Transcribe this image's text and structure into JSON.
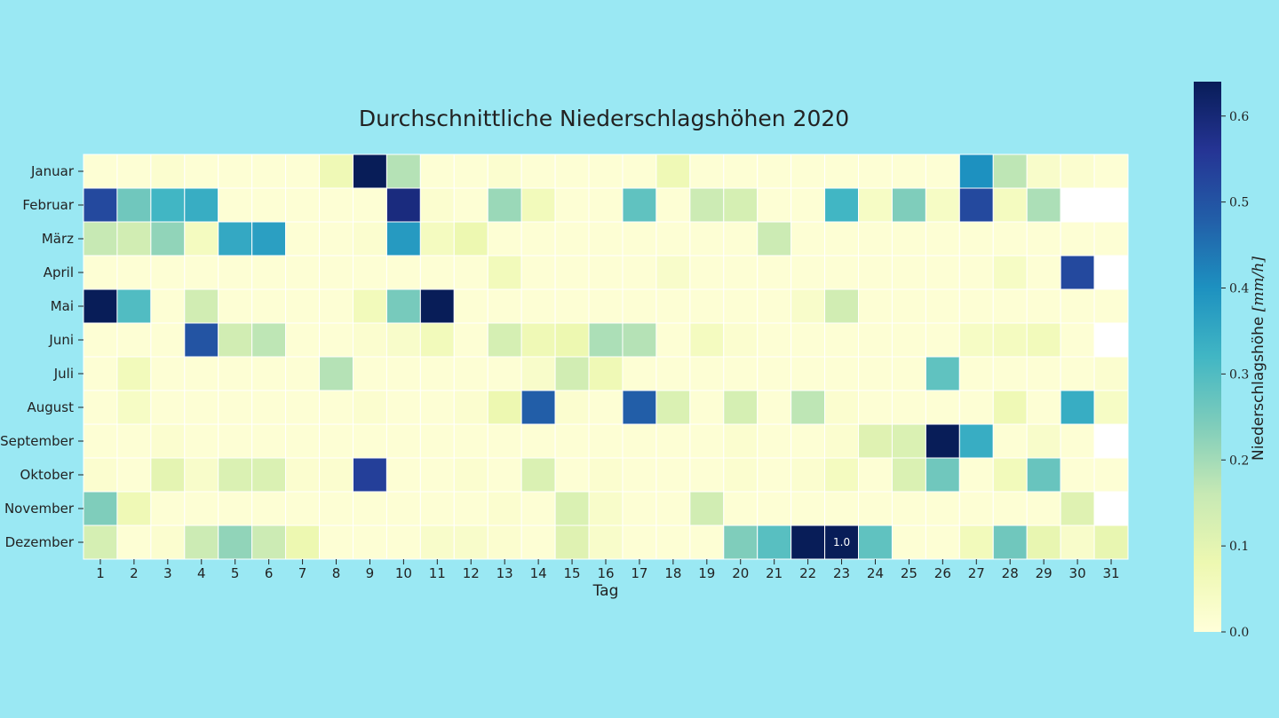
{
  "chart_data": {
    "type": "heatmap",
    "title": "Durchschnittliche Niederschlagshöhen 2020",
    "xlabel": "Tag",
    "ylabel": "",
    "x": [
      "1",
      "2",
      "3",
      "4",
      "5",
      "6",
      "7",
      "8",
      "9",
      "10",
      "11",
      "12",
      "13",
      "14",
      "15",
      "16",
      "17",
      "18",
      "19",
      "20",
      "21",
      "22",
      "23",
      "24",
      "25",
      "26",
      "27",
      "28",
      "29",
      "30",
      "31"
    ],
    "y": [
      "Januar",
      "Februar",
      "März",
      "April",
      "Mai",
      "Juni",
      "Juli",
      "August",
      "September",
      "Oktober",
      "November",
      "Dezember"
    ],
    "values": [
      [
        0.01,
        0.01,
        0.02,
        0.01,
        0.01,
        0.01,
        0.01,
        0.07,
        0.64,
        0.18,
        0.01,
        0.01,
        0.02,
        0.01,
        0.01,
        0.01,
        0.01,
        0.07,
        0.01,
        0.01,
        0.01,
        0.01,
        0.01,
        0.01,
        0.01,
        0.01,
        0.4,
        0.17,
        0.03,
        0.02,
        0.01
      ],
      [
        0.52,
        0.26,
        0.32,
        0.34,
        0.01,
        0.01,
        0.01,
        0.01,
        0.01,
        0.59,
        0.02,
        0.01,
        0.21,
        0.06,
        0.01,
        0.01,
        0.28,
        0.01,
        0.15,
        0.13,
        0.01,
        0.01,
        0.32,
        0.04,
        0.24,
        0.04,
        0.52,
        0.05,
        0.19,
        null,
        null
      ],
      [
        0.16,
        0.14,
        0.22,
        0.05,
        0.35,
        0.37,
        0.01,
        0.01,
        0.02,
        0.38,
        0.05,
        0.08,
        0.01,
        0.01,
        0.01,
        0.01,
        0.01,
        0.01,
        0.01,
        0.01,
        0.15,
        0.01,
        0.01,
        0.01,
        0.01,
        0.01,
        0.01,
        0.01,
        0.01,
        0.01,
        0.01
      ],
      [
        0.01,
        0.01,
        0.01,
        0.01,
        0.01,
        0.01,
        0.01,
        0.01,
        0.01,
        0.01,
        0.01,
        0.01,
        0.06,
        0.01,
        0.01,
        0.01,
        0.01,
        0.03,
        0.01,
        0.01,
        0.01,
        0.01,
        0.01,
        0.01,
        0.01,
        0.01,
        0.01,
        0.04,
        0.01,
        0.52,
        null
      ],
      [
        0.64,
        0.3,
        0.01,
        0.14,
        0.01,
        0.01,
        0.01,
        0.01,
        0.06,
        0.25,
        0.64,
        0.01,
        0.01,
        0.01,
        0.01,
        0.01,
        0.01,
        0.01,
        0.01,
        0.01,
        0.01,
        0.03,
        0.14,
        0.01,
        0.01,
        0.01,
        0.01,
        0.01,
        0.01,
        0.01,
        0.01
      ],
      [
        0.01,
        0.01,
        0.01,
        0.5,
        0.14,
        0.17,
        0.01,
        0.01,
        0.02,
        0.03,
        0.06,
        0.01,
        0.13,
        0.07,
        0.08,
        0.19,
        0.18,
        0.01,
        0.05,
        0.02,
        0.01,
        0.01,
        0.01,
        0.01,
        0.01,
        0.01,
        0.04,
        0.05,
        0.06,
        0.01,
        null
      ],
      [
        0.01,
        0.06,
        0.01,
        0.01,
        0.01,
        0.01,
        0.01,
        0.18,
        0.01,
        0.01,
        0.01,
        0.01,
        0.01,
        0.03,
        0.14,
        0.07,
        0.01,
        0.01,
        0.01,
        0.01,
        0.01,
        0.01,
        0.01,
        0.01,
        0.01,
        0.28,
        0.01,
        0.01,
        0.01,
        0.01,
        0.02
      ],
      [
        0.01,
        0.04,
        0.01,
        0.01,
        0.01,
        0.01,
        0.01,
        0.01,
        0.02,
        0.01,
        0.01,
        0.02,
        0.08,
        0.48,
        0.02,
        0.01,
        0.48,
        0.12,
        0.01,
        0.13,
        0.01,
        0.17,
        0.02,
        0.01,
        0.01,
        0.01,
        0.01,
        0.07,
        0.01,
        0.34,
        0.04
      ],
      [
        0.01,
        0.01,
        0.02,
        0.01,
        0.01,
        0.01,
        0.01,
        0.01,
        0.01,
        0.01,
        0.01,
        0.01,
        0.01,
        0.01,
        0.01,
        0.01,
        0.01,
        0.01,
        0.01,
        0.02,
        0.01,
        0.01,
        0.02,
        0.11,
        0.12,
        0.64,
        0.34,
        0.01,
        0.03,
        0.01,
        null
      ],
      [
        0.02,
        0.01,
        0.1,
        0.03,
        0.12,
        0.12,
        0.02,
        0.02,
        0.54,
        0.01,
        0.01,
        0.02,
        0.01,
        0.12,
        0.01,
        0.02,
        0.01,
        0.01,
        0.01,
        0.02,
        0.01,
        0.02,
        0.05,
        0.01,
        0.12,
        0.26,
        0.01,
        0.06,
        0.27,
        0.01,
        0.01
      ],
      [
        0.24,
        0.07,
        0.01,
        0.01,
        0.01,
        0.01,
        0.01,
        0.01,
        0.01,
        0.01,
        0.01,
        0.01,
        0.02,
        0.01,
        0.12,
        0.03,
        0.01,
        0.01,
        0.14,
        0.01,
        0.01,
        0.01,
        0.01,
        0.01,
        0.01,
        0.01,
        0.01,
        0.01,
        0.01,
        0.11,
        null
      ],
      [
        0.13,
        0.01,
        0.02,
        0.15,
        0.22,
        0.15,
        0.08,
        0.01,
        0.01,
        0.01,
        0.03,
        0.03,
        0.02,
        0.01,
        0.11,
        0.03,
        0.01,
        0.01,
        0.01,
        0.24,
        0.29,
        0.64,
        0.64,
        0.28,
        0.01,
        0.01,
        0.06,
        0.26,
        0.09,
        0.03,
        0.09
      ]
    ],
    "annotations": [
      {
        "row": "Dezember",
        "col": "23",
        "text": "1.0"
      }
    ],
    "colorbar": {
      "label": "Niederschlagshöhe",
      "unit": "[mm/h]",
      "range": [
        0.0,
        0.64
      ],
      "ticks": [
        "0.0",
        "0.1",
        "0.2",
        "0.3",
        "0.4",
        "0.5",
        "0.6"
      ],
      "colormap": "YlGnBu"
    },
    "missing_color": "#ffffff"
  }
}
